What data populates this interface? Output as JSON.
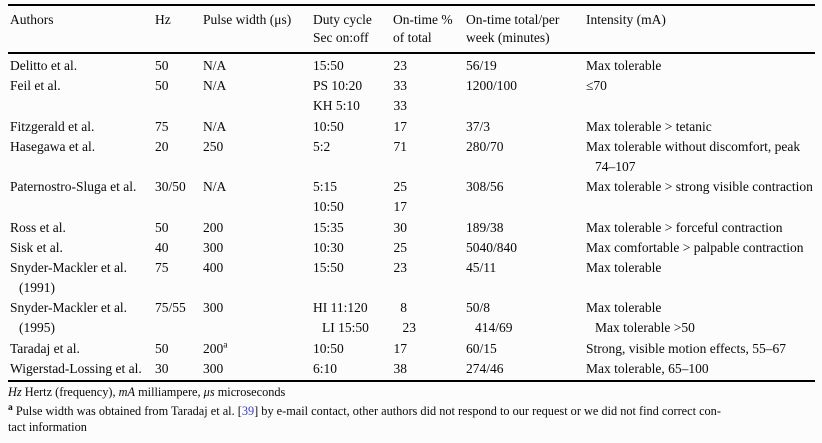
{
  "table": {
    "columns": [
      {
        "l1": "Authors",
        "l2": ""
      },
      {
        "l1": "Hz",
        "l2": ""
      },
      {
        "l1": "Pulse width (μs)",
        "l2": ""
      },
      {
        "l1": "Duty cycle",
        "l2": "Sec on:off"
      },
      {
        "l1": "On-time %",
        "l2": "of total"
      },
      {
        "l1": "On-time total/per",
        "l2": "week (minutes)"
      },
      {
        "l1": "Intensity (mA)",
        "l2": ""
      }
    ],
    "rows": [
      [
        "Delitto et al.",
        "50",
        "N/A",
        "15:50",
        "23",
        "56/19",
        "Max tolerable"
      ],
      [
        "Feil et al.",
        "50",
        "N/A",
        "PS 10:20",
        "33",
        "1200/100",
        "≤70"
      ],
      [
        "",
        "",
        "",
        "KH 5:10",
        "33",
        "",
        ""
      ],
      [
        "Fitzgerald et al.",
        "75",
        "N/A",
        "10:50",
        "17",
        "37/3",
        "Max tolerable > tetanic"
      ],
      [
        "Hasegawa et al.",
        "20",
        "250",
        "5:2",
        "71",
        "280/70",
        "Max tolerable without discomfort, peak"
      ],
      [
        "",
        "",
        "",
        "",
        "",
        "",
        {
          "v": "74–107",
          "indent": true
        }
      ],
      [
        "Paternostro-Sluga et al.",
        "30/50",
        "N/A",
        "5:15",
        "25",
        "308/56",
        "Max tolerable > strong visible contraction"
      ],
      [
        "",
        "",
        "",
        "10:50",
        "17",
        "",
        ""
      ],
      [
        "Ross et al.",
        "50",
        "200",
        "15:35",
        "30",
        "189/38",
        "Max tolerable > forceful contraction"
      ],
      [
        "Sisk et al.",
        "40",
        "300",
        "10:30",
        "25",
        "5040/840",
        "Max comfortable > palpable contraction"
      ],
      [
        "Snyder-Mackler et al.",
        "75",
        "400",
        "15:50",
        "23",
        "45/11",
        "Max tolerable"
      ],
      [
        {
          "v": "(1991)",
          "indent": true
        },
        "",
        "",
        "",
        "",
        "",
        ""
      ],
      [
        "Snyder-Mackler et al.",
        "75/55",
        "300",
        "HI 11:120",
        "8",
        "50/8",
        "Max tolerable"
      ],
      [
        {
          "v": "(1995)",
          "indent": true
        },
        "",
        "",
        "LI 15:50",
        "23",
        "414/69",
        "Max tolerable >50"
      ],
      [
        "Taradaj et al.",
        "50",
        {
          "v": "200",
          "sup": "a"
        },
        "10:50",
        "17",
        "60/15",
        "Strong, visible motion effects, 55–67"
      ],
      [
        "Wigerstad-Lossing et al.",
        "30",
        "300",
        "6:10",
        "38",
        "274/46",
        "Max tolerable, 65–100"
      ]
    ]
  },
  "footnotes": {
    "abbrev": [
      {
        "t": "Hz"
      },
      {
        "t": " Hertz (frequency), "
      },
      {
        "t": "mA"
      },
      {
        "t": " milliampere, "
      },
      {
        "t": "μs"
      },
      {
        "t": " microseconds"
      }
    ],
    "note_a": {
      "marker": "a",
      "pre": " Pulse width was obtained from Taradaj et al. [",
      "cite": "39",
      "post": "] by e-mail contact, other authors did not respond to our request or we did not find correct con-",
      "line2": "tact information"
    }
  },
  "colors": {
    "citation": "#3c3cc8",
    "text": "#0a0a0a",
    "background": "#fcfcfc",
    "rule": "#000000"
  }
}
